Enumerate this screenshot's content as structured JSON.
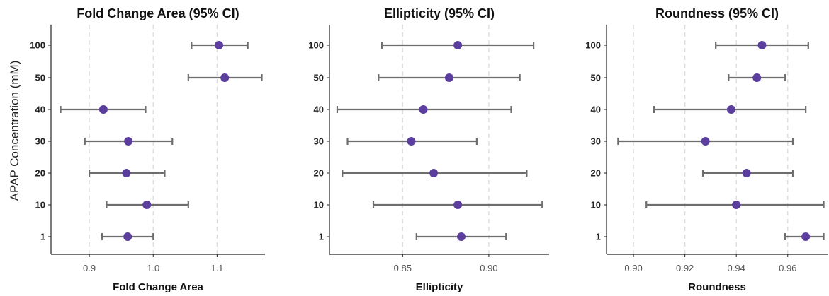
{
  "y_axis_label": "APAP Concentration (mM)",
  "colors": {
    "point": "#5b3e9e",
    "errorbar": "#6e6e6e",
    "grid": "#dddddd",
    "axis": "#222222"
  },
  "chart_data": [
    {
      "type": "scatter",
      "title": "Fold Change Area (95% CI)",
      "xlabel": "Fold Change Area",
      "ylabel": "APAP Concentration (mM)",
      "grid": "vertical-dashed",
      "categories": [
        "1",
        "10",
        "20",
        "30",
        "40",
        "50",
        "100"
      ],
      "xlim": [
        0.84,
        1.175
      ],
      "xticks": [
        "0.9",
        "1.0",
        "1.1"
      ],
      "points": [
        {
          "category": "1",
          "mean": 0.96,
          "lower": 0.92,
          "upper": 1.0
        },
        {
          "category": "10",
          "mean": 0.99,
          "lower": 0.927,
          "upper": 1.055
        },
        {
          "category": "20",
          "mean": 0.958,
          "lower": 0.9,
          "upper": 1.018
        },
        {
          "category": "30",
          "mean": 0.961,
          "lower": 0.893,
          "upper": 1.03
        },
        {
          "category": "40",
          "mean": 0.922,
          "lower": 0.855,
          "upper": 0.988
        },
        {
          "category": "50",
          "mean": 1.112,
          "lower": 1.055,
          "upper": 1.17
        },
        {
          "category": "100",
          "mean": 1.103,
          "lower": 1.06,
          "upper": 1.148
        }
      ]
    },
    {
      "type": "scatter",
      "title": "Ellipticity (95% CI)",
      "xlabel": "Ellipticity",
      "ylabel": "",
      "grid": "vertical-dashed",
      "categories": [
        "1",
        "10",
        "20",
        "30",
        "40",
        "50",
        "100"
      ],
      "xlim": [
        0.8075,
        0.935
      ],
      "xticks": [
        "0.85",
        "0.90"
      ],
      "points": [
        {
          "category": "1",
          "mean": 0.884,
          "lower": 0.858,
          "upper": 0.91
        },
        {
          "category": "10",
          "mean": 0.882,
          "lower": 0.833,
          "upper": 0.931
        },
        {
          "category": "20",
          "mean": 0.868,
          "lower": 0.815,
          "upper": 0.922
        },
        {
          "category": "30",
          "mean": 0.855,
          "lower": 0.818,
          "upper": 0.893
        },
        {
          "category": "40",
          "mean": 0.862,
          "lower": 0.812,
          "upper": 0.913
        },
        {
          "category": "50",
          "mean": 0.877,
          "lower": 0.836,
          "upper": 0.918
        },
        {
          "category": "100",
          "mean": 0.882,
          "lower": 0.838,
          "upper": 0.926
        }
      ]
    },
    {
      "type": "scatter",
      "title": "Roundness (95% CI)",
      "xlabel": "Roundness",
      "ylabel": "",
      "grid": "vertical-dashed",
      "categories": [
        "1",
        "10",
        "20",
        "30",
        "40",
        "50",
        "100"
      ],
      "xlim": [
        0.8895,
        0.9755
      ],
      "xticks": [
        "0.90",
        "0.92",
        "0.94",
        "0.96"
      ],
      "points": [
        {
          "category": "1",
          "mean": 0.967,
          "lower": 0.959,
          "upper": 0.974
        },
        {
          "category": "10",
          "mean": 0.94,
          "lower": 0.905,
          "upper": 0.974
        },
        {
          "category": "20",
          "mean": 0.944,
          "lower": 0.927,
          "upper": 0.962
        },
        {
          "category": "30",
          "mean": 0.928,
          "lower": 0.894,
          "upper": 0.962
        },
        {
          "category": "40",
          "mean": 0.938,
          "lower": 0.908,
          "upper": 0.967
        },
        {
          "category": "50",
          "mean": 0.948,
          "lower": 0.937,
          "upper": 0.959
        },
        {
          "category": "100",
          "mean": 0.95,
          "lower": 0.932,
          "upper": 0.968
        }
      ]
    }
  ]
}
